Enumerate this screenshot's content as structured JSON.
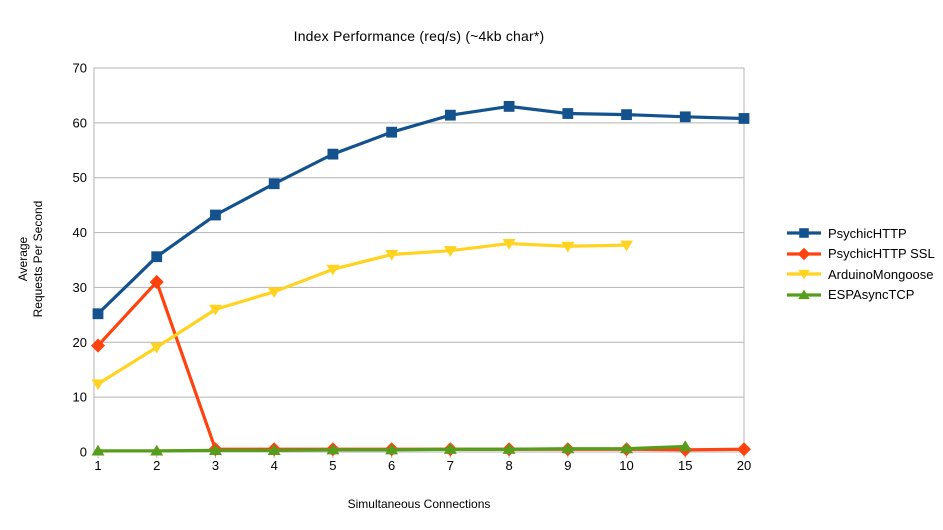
{
  "title": "Index Performance (req/s) (~4kb char*)",
  "x_axis": {
    "title": "Simultaneous Connections",
    "tick_labels": [
      "1",
      "2",
      "3",
      "4",
      "5",
      "6",
      "7",
      "8",
      "9",
      "10",
      "15",
      "20"
    ]
  },
  "y_axis": {
    "title_lines": [
      "Average",
      "Requests Per Second"
    ],
    "ticks": [
      0,
      10,
      20,
      30,
      40,
      50,
      60,
      70
    ]
  },
  "colors": {
    "grid": "#b3b3b3",
    "background": "#ffffff",
    "text": "#000000",
    "series_blue": "#14528e",
    "series_red": "#ff420e",
    "series_yellow": "#ffd320",
    "series_green": "#579d1c"
  },
  "chart_data": {
    "type": "line",
    "title": "Index Performance (req/s) (~4kb char*)",
    "xlabel": "Simultaneous Connections",
    "ylabel": "Average Requests Per Second",
    "categories": [
      1,
      2,
      3,
      4,
      5,
      6,
      7,
      8,
      9,
      10,
      15,
      20
    ],
    "ylim": [
      0,
      70
    ],
    "y_tick_step": 10,
    "grid": true,
    "legend_position": "right",
    "series": [
      {
        "name": "PsychicHTTP",
        "color": "#14528e",
        "marker": "square",
        "values": [
          25.2,
          35.6,
          43.2,
          48.9,
          54.3,
          58.3,
          61.4,
          63.0,
          61.7,
          61.5,
          61.1,
          60.8
        ]
      },
      {
        "name": "PsychicHTTP SSL",
        "color": "#ff420e",
        "marker": "diamond",
        "values": [
          19.4,
          31.0,
          0.5,
          0.5,
          0.5,
          0.5,
          0.5,
          0.5,
          0.5,
          0.5,
          0.4,
          0.5
        ]
      },
      {
        "name": "ArduinoMongoose",
        "color": "#ffd320",
        "marker": "triangle-down",
        "values": [
          12.4,
          19.1,
          26.0,
          29.2,
          33.3,
          36.0,
          36.7,
          38.0,
          37.5,
          37.7,
          null,
          null
        ]
      },
      {
        "name": "ESPAsyncTCP",
        "color": "#579d1c",
        "marker": "triangle-up",
        "values": [
          0.2,
          0.2,
          0.3,
          0.3,
          0.4,
          0.4,
          0.5,
          0.5,
          0.6,
          0.6,
          1.0,
          null
        ]
      }
    ]
  }
}
